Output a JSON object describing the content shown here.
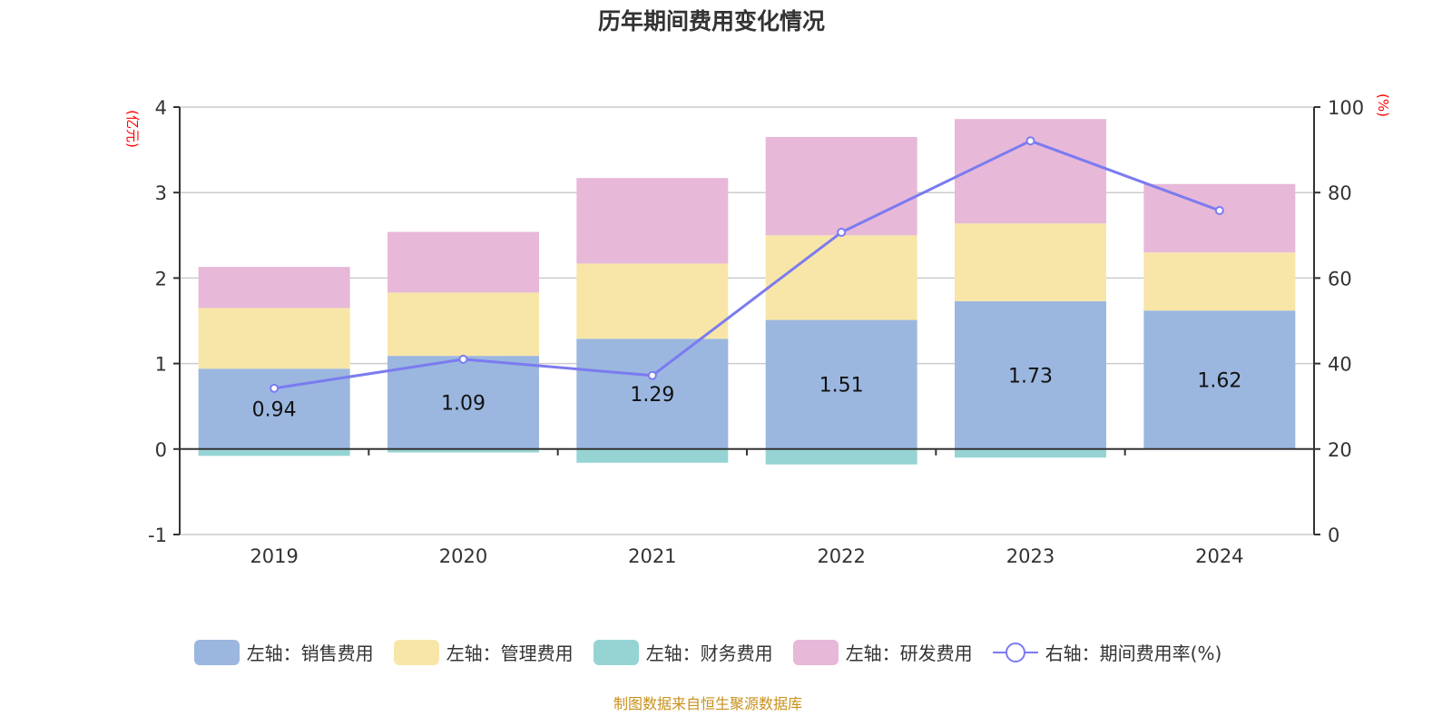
{
  "title": "历年期间费用变化情况",
  "footer": "制图数据来自恒生聚源数据库",
  "chart_data": {
    "type": "bar",
    "title": "历年期间费用变化情况",
    "categories": [
      "2019",
      "2020",
      "2021",
      "2022",
      "2023",
      "2024"
    ],
    "y_left": {
      "label": "(亿元)",
      "range": [
        -1,
        4
      ],
      "ticks": [
        "-1",
        "0",
        "1",
        "2",
        "3",
        "4"
      ]
    },
    "y_right": {
      "label": "(%)",
      "range": [
        0,
        100
      ],
      "ticks": [
        "0",
        "20",
        "40",
        "60",
        "80",
        "100"
      ]
    },
    "grid": true,
    "legend_position": "bottom",
    "stacked": true,
    "series": [
      {
        "name": "左轴：销售费用",
        "type": "bar",
        "color": "#9bb7e0",
        "values": [
          0.94,
          1.09,
          1.29,
          1.51,
          1.73,
          1.62
        ],
        "labels": [
          "0.94",
          "1.09",
          "1.29",
          "1.51",
          "1.73",
          "1.62"
        ]
      },
      {
        "name": "左轴：管理费用",
        "type": "bar",
        "color": "#f8e6a8",
        "values": [
          0.71,
          0.74,
          0.88,
          0.99,
          0.91,
          0.68
        ]
      },
      {
        "name": "左轴：财务费用",
        "type": "bar",
        "color": "#96d4d4",
        "values": [
          -0.08,
          -0.04,
          -0.16,
          -0.18,
          -0.1,
          -0.003
        ]
      },
      {
        "name": "左轴：研发费用",
        "type": "bar",
        "color": "#e7b8d8",
        "values": [
          0.48,
          0.71,
          1.0,
          1.15,
          1.22,
          0.8
        ]
      },
      {
        "name": "右轴：期间费用率(%)",
        "type": "line",
        "axis": "right",
        "color": "#7b7bf0",
        "values": [
          34.2,
          41.0,
          37.2,
          70.7,
          92.1,
          75.8
        ]
      }
    ]
  }
}
